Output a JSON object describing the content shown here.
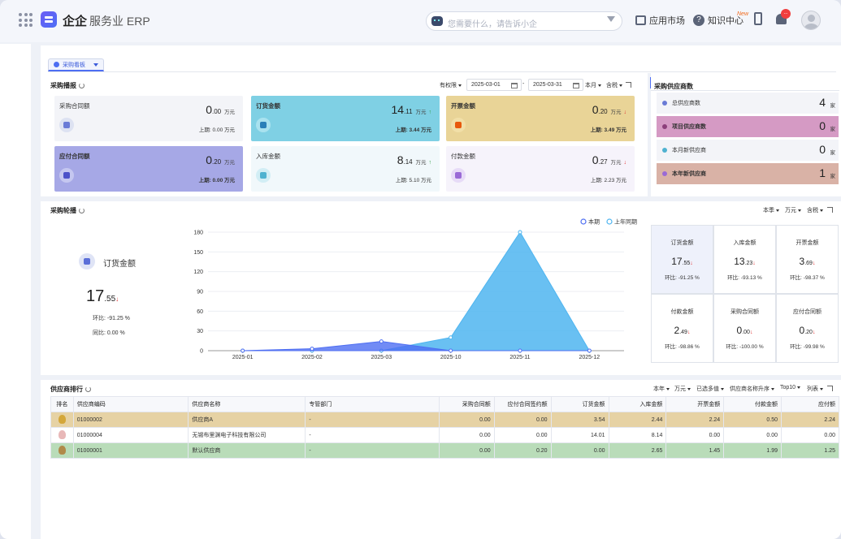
{
  "header": {
    "brand": "企企",
    "product": "服务业 ERP",
    "search_placeholder": "您需要什么，请告诉小企",
    "app_market": "应用市场",
    "knowledge": "知识中心",
    "new_tag": "New",
    "bell_badge": "..."
  },
  "tab": {
    "label": "采购看板"
  },
  "report": {
    "title": "采购播报",
    "perm": "有权限",
    "date_from": "2025-03-01",
    "date_sep": "-",
    "date_to": "2025-03-31",
    "period": "本月",
    "tax": "含税",
    "cards": [
      {
        "label": "采购合同额",
        "int": "0",
        "dec": ".00",
        "unit": "万元",
        "arrow": "",
        "prev": "上期:  0.00 万元",
        "bg": "#f3f4f8",
        "icon_bg": "#dde2f2",
        "icon_fg": "#6a7bd6"
      },
      {
        "label": "订货金额",
        "int": "14",
        "dec": ".11",
        "unit": "万元",
        "arrow": "↑",
        "prev": "上期:  3.44 万元",
        "bg": "#7fd0e4",
        "icon_bg": "#a9e2ef",
        "icon_fg": "#2a7fb8"
      },
      {
        "label": "开票金额",
        "int": "0",
        "dec": ".20",
        "unit": "万元",
        "arrow": "↓",
        "prev": "上期:  3.49 万元",
        "bg": "#e9d497",
        "icon_bg": "#f1dfa8",
        "icon_fg": "#e8590c"
      },
      {
        "label": "应付合同额",
        "int": "0",
        "dec": ".20",
        "unit": "万元",
        "arrow": "",
        "prev": "上期:  0.00 万元",
        "bg": "#a6a8e6",
        "icon_bg": "#c5c7f0",
        "icon_fg": "#4c52c9"
      },
      {
        "label": "入库金额",
        "int": "8",
        "dec": ".14",
        "unit": "万元",
        "arrow": "↑",
        "prev": "上期:  5.10 万元",
        "bg": "#f1f8fb",
        "icon_bg": "#d2eef5",
        "icon_fg": "#4fb2d0"
      },
      {
        "label": "付款金额",
        "int": "0",
        "dec": ".27",
        "unit": "万元",
        "arrow": "↓",
        "prev": "上期:  2.23 万元",
        "bg": "#f6f3fb",
        "icon_bg": "#e7dbf7",
        "icon_fg": "#9a6ad6"
      }
    ]
  },
  "suppliers": {
    "title": "采购供应商数",
    "rows": [
      {
        "label": "总供应商数",
        "count": "4",
        "unit": "家",
        "bg": "#f3f4f8",
        "dot": "#6a7bd6"
      },
      {
        "label": "项目供应商数",
        "count": "0",
        "unit": "家",
        "bg": "#d59ac4",
        "dot": "#8c3f7a"
      },
      {
        "label": "本月新供应商",
        "count": "0",
        "unit": "家",
        "bg": "#f3f4f8",
        "dot": "#4fb2d0"
      },
      {
        "label": "本年新供应商",
        "count": "1",
        "unit": "家",
        "bg": "#d9b2a6",
        "dot": "#9a6ad6"
      }
    ]
  },
  "rotation": {
    "title": "采购轮播",
    "quarter": "本季",
    "unit": "万元",
    "tax": "含税",
    "focus": {
      "label": "订货金额",
      "int": "17",
      "dec": ".55",
      "arrow": "↓",
      "hb": "环比:  -91.25 %",
      "tb": "同比:  0.00 %"
    },
    "metrics": [
      {
        "label": "订货金额",
        "int": "17",
        "dec": ".55",
        "hb": "环比:  -91.25 %"
      },
      {
        "label": "入库金额",
        "int": "13",
        "dec": ".23",
        "hb": "环比:  -93.13 %"
      },
      {
        "label": "开票金额",
        "int": "3",
        "dec": ".69",
        "hb": "环比:  -98.37 %"
      },
      {
        "label": "付款金额",
        "int": "2",
        "dec": ".49",
        "hb": "环比:  -98.86 %"
      },
      {
        "label": "采购合同额",
        "int": "0",
        "dec": ".00",
        "hb": "环比:  -100.00 %"
      },
      {
        "label": "应付合同额",
        "int": "0",
        "dec": ".20",
        "hb": "环比:  -99.98 %"
      }
    ]
  },
  "chart_data": {
    "type": "area",
    "categories": [
      "2025-01",
      "2025-02",
      "2025-03",
      "2025-10",
      "2025-11",
      "2025-12"
    ],
    "series": [
      {
        "name": "本期",
        "values": [
          0,
          3,
          14,
          0,
          0,
          0
        ],
        "color": "#4e6ef2"
      },
      {
        "name": "上年同期",
        "values": [
          0,
          0,
          0,
          20,
          180,
          0
        ],
        "color": "#4fb5f0"
      }
    ],
    "yticks": [
      0,
      30,
      60,
      90,
      120,
      150,
      180
    ],
    "ylim": [
      0,
      180
    ],
    "legend": "top-right"
  },
  "ranking": {
    "title": "供应商排行",
    "ctrl_year": "本年",
    "ctrl_unit": "万元",
    "ctrl_selected": "已选多值",
    "ctrl_sort": "供应商名称升序",
    "ctrl_top": "Top10",
    "ctrl_cols": "列表",
    "headers": [
      "排名",
      "供应商编码",
      "供应商名称",
      "专管部门",
      "采购合同额",
      "应付合同签约额",
      "订货金额",
      "入库金额",
      "开票金额",
      "付款金额",
      "应付额"
    ],
    "rows": [
      {
        "code": "01000002",
        "name": "供应商A",
        "dept": "-",
        "v": [
          "0.00",
          "0.00",
          "3.54",
          "2.44",
          "2.24",
          "0.50",
          "2.24"
        ],
        "bg": "#e6d2a4",
        "medal": "#d4a73a"
      },
      {
        "code": "01000004",
        "name": "无锡布里渊电子科技有限公司",
        "dept": "-",
        "v": [
          "0.00",
          "0.00",
          "14.01",
          "8.14",
          "0.00",
          "0.00",
          "0.00"
        ],
        "bg": "#ffffff",
        "medal": "#e8b8b8"
      },
      {
        "code": "01000001",
        "name": "默认供应商",
        "dept": "-",
        "v": [
          "0.00",
          "0.20",
          "0.00",
          "2.65",
          "1.45",
          "1.99",
          "1.25"
        ],
        "bg": "#b9dcb9",
        "medal": "#b08a4a"
      }
    ]
  }
}
